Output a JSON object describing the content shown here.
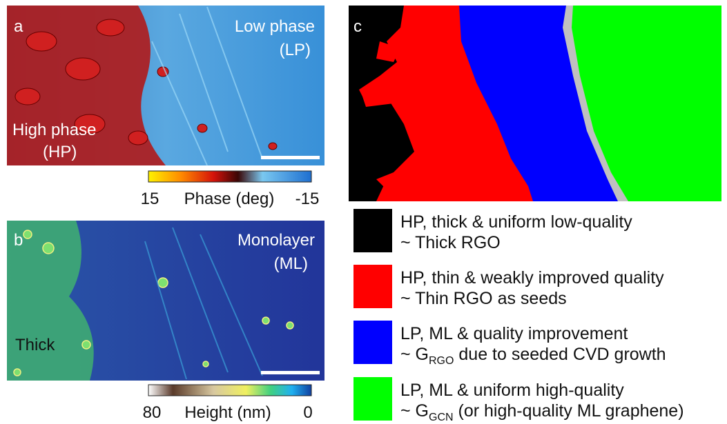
{
  "panel_a": {
    "letter": "a",
    "label_low": [
      "Low phase",
      "(LP)"
    ],
    "label_high": [
      "High phase",
      "(HP)"
    ],
    "colorbar": {
      "min_label": 15,
      "title": "Phase (deg)",
      "max_label": -15
    }
  },
  "panel_b": {
    "letter": "b",
    "label_ml": [
      "Monolayer",
      "(ML)"
    ],
    "label_thick": "Thick",
    "colorbar": {
      "min_label": 80,
      "title": "Height (nm)",
      "max_label": 0
    }
  },
  "panel_c": {
    "letter": "c"
  },
  "legend": [
    {
      "line1": "HP, thick & uniform low-quality",
      "line2": "~ Thick RGO"
    },
    {
      "line1": "HP, thin & weakly improved quality",
      "line2": "~ Thin RGO as seeds"
    },
    {
      "line1": "LP, ML & quality improvement",
      "line2_prefix": "~ G",
      "line2_sub": "RGO",
      "line2_suffix": " due to seeded CVD growth"
    },
    {
      "line1": "LP, ML & uniform high-quality",
      "line2_prefix": "~ G",
      "line2_sub": "GCN",
      "line2_suffix": " (or high-quality ML graphene)"
    }
  ]
}
